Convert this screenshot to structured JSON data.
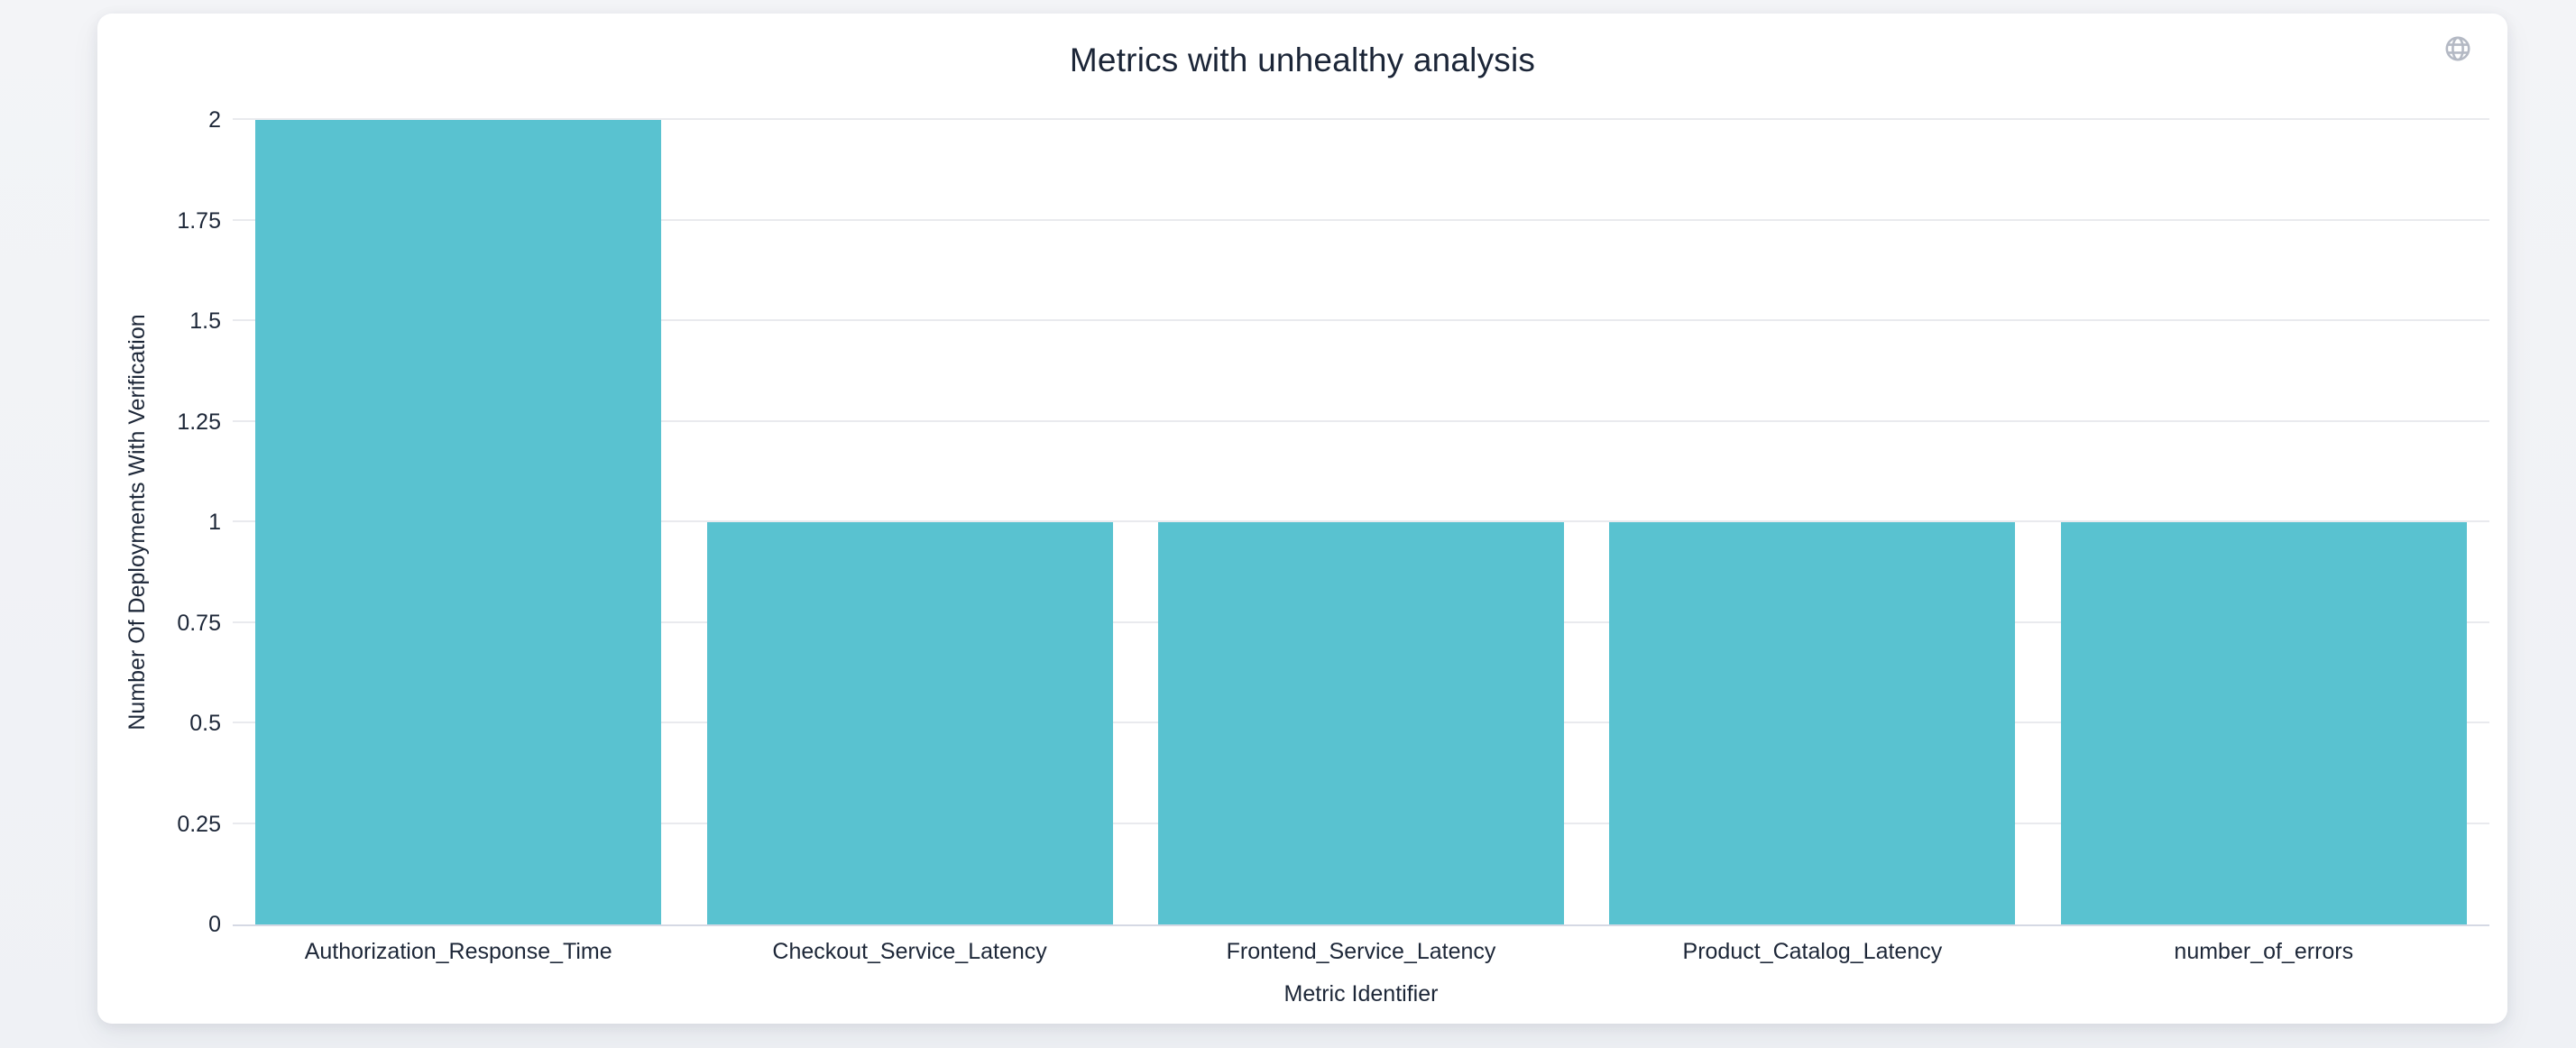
{
  "card": {
    "globe_icon_color": "#b4b9c4"
  },
  "chart_data": {
    "type": "bar",
    "title": "Metrics with unhealthy analysis",
    "categories": [
      "Authorization_Response_Time",
      "Checkout_Service_Latency",
      "Frontend_Service_Latency",
      "Product_Catalog_Latency",
      "number_of_errors"
    ],
    "values": [
      2,
      1,
      1,
      1,
      1
    ],
    "xlabel": "Metric Identifier",
    "ylabel": "Number Of Deployments With Verification",
    "ylim": [
      0,
      2
    ],
    "yticks": [
      0,
      0.25,
      0.5,
      0.75,
      1,
      1.25,
      1.5,
      1.75,
      2
    ],
    "ytick_labels": [
      "0",
      "0.25",
      "0.5",
      "0.75",
      "1",
      "1.25",
      "1.5",
      "1.75",
      "2"
    ],
    "bar_color": "#59c2d0",
    "grid": true,
    "gridline_color": "#e9eaee",
    "axis_line_color": "#d5d9e4",
    "text_color": "#1d2738",
    "legend_position": "none"
  }
}
